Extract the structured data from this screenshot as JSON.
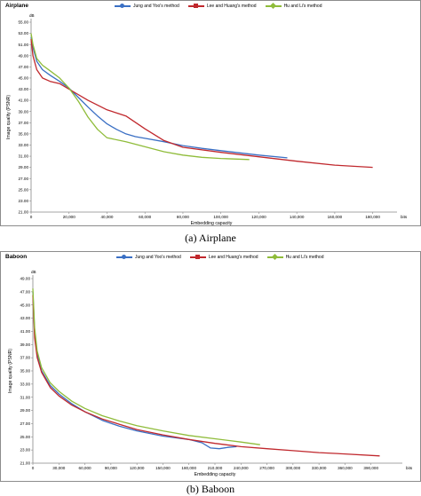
{
  "chart_data": [
    {
      "type": "line",
      "title": "Airplane",
      "caption": "(a)    Airplane",
      "xlabel": "Embedding capacity",
      "ylabel": "Image quality (PSNR)",
      "y_unit": "dB",
      "x_unit": "bits",
      "xlim": [
        0,
        190000
      ],
      "ylim": [
        21,
        55
      ],
      "x_ticks": [
        "0",
        "20,000",
        "40,000",
        "60,000",
        "80,000",
        "100,000",
        "120,000",
        "140,000",
        "160,000",
        "180,000"
      ],
      "y_ticks": [
        "21.00",
        "23.00",
        "25.00",
        "27.00",
        "29.00",
        "31.00",
        "33.00",
        "35.00",
        "37.00",
        "39.00",
        "41.00",
        "43.00",
        "45.00",
        "47.00",
        "49.00",
        "51.00",
        "53.00",
        "55.00"
      ],
      "grid": false,
      "legend_position": "top",
      "series": [
        {
          "name": "Jung and Yoo's method",
          "color": "#3a6fc4",
          "x": [
            0,
            1000,
            3000,
            6000,
            10000,
            15000,
            20000,
            25000,
            30000,
            35000,
            40000,
            45000,
            50000,
            55000,
            60000,
            70000,
            80000,
            90000,
            100000,
            110000,
            120000,
            135000
          ],
          "y": [
            52.3,
            50.5,
            48.0,
            46.5,
            45.5,
            44.4,
            43.2,
            41.5,
            39.8,
            38.2,
            36.8,
            35.8,
            35.0,
            34.5,
            34.2,
            33.6,
            32.9,
            32.4,
            32.0,
            31.6,
            31.2,
            30.7
          ]
        },
        {
          "name": "Lee and Huang's method",
          "color": "#c0282d",
          "x": [
            0,
            1000,
            3000,
            6000,
            10000,
            15000,
            20000,
            30000,
            40000,
            50000,
            60000,
            70000,
            80000,
            100000,
            120000,
            140000,
            160000,
            180000
          ],
          "y": [
            52.0,
            49.0,
            46.5,
            45.0,
            44.4,
            44.0,
            43.0,
            41.0,
            39.3,
            38.2,
            35.9,
            33.8,
            32.6,
            31.7,
            30.9,
            30.1,
            29.4,
            29.0
          ]
        },
        {
          "name": "Hu and Li's method",
          "color": "#8fbc3a",
          "x": [
            0,
            1000,
            3000,
            6000,
            10000,
            15000,
            20000,
            25000,
            30000,
            35000,
            40000,
            50000,
            60000,
            70000,
            80000,
            90000,
            100000,
            115000
          ],
          "y": [
            53.0,
            51.0,
            48.5,
            47.3,
            46.3,
            45.0,
            43.2,
            40.8,
            38.0,
            35.8,
            34.3,
            33.6,
            32.7,
            31.8,
            31.2,
            30.8,
            30.6,
            30.4
          ]
        }
      ]
    },
    {
      "type": "line",
      "title": "Baboon",
      "caption": "(b)   Baboon",
      "xlabel": "Embedding capacity",
      "ylabel": "Image quality (PSNR)",
      "y_unit": "dB",
      "x_unit": "bits",
      "xlim": [
        0,
        420000
      ],
      "ylim": [
        21,
        49
      ],
      "x_ticks": [
        "0",
        "30,000",
        "60,000",
        "90,000",
        "120,000",
        "150,000",
        "180,000",
        "210,000",
        "240,000",
        "270,000",
        "300,000",
        "330,000",
        "360,000",
        "390,000"
      ],
      "y_ticks": [
        "21.00",
        "23.00",
        "25.00",
        "27.00",
        "29.00",
        "31.00",
        "33.00",
        "35.00",
        "37.00",
        "39.00",
        "41.00",
        "43.00",
        "45.00",
        "47.00",
        "49.00"
      ],
      "grid": false,
      "legend_position": "top",
      "series": [
        {
          "name": "Jung and Yoo's method",
          "color": "#3a6fc4",
          "x": [
            0,
            2000,
            5000,
            10000,
            20000,
            30000,
            45000,
            60000,
            80000,
            100000,
            120000,
            150000,
            180000,
            195000,
            205000,
            215000,
            225000,
            235000
          ],
          "y": [
            47.0,
            41.0,
            37.5,
            35.0,
            32.8,
            31.5,
            30.0,
            28.8,
            27.5,
            26.6,
            25.9,
            25.1,
            24.6,
            24.1,
            23.3,
            23.2,
            23.4,
            23.5
          ]
        },
        {
          "name": "Lee and Huang's method",
          "color": "#c0282d",
          "x": [
            0,
            2000,
            5000,
            10000,
            20000,
            30000,
            45000,
            60000,
            80000,
            100000,
            120000,
            150000,
            180000,
            210000,
            240000,
            270000,
            300000,
            330000,
            360000,
            400000
          ],
          "y": [
            46.5,
            40.0,
            37.0,
            34.8,
            32.5,
            31.2,
            29.8,
            28.8,
            27.7,
            26.9,
            26.1,
            25.3,
            24.6,
            24.0,
            23.5,
            23.2,
            22.9,
            22.6,
            22.4,
            22.1
          ]
        },
        {
          "name": "Hu and Li's method",
          "color": "#8fbc3a",
          "x": [
            0,
            2000,
            5000,
            10000,
            20000,
            30000,
            45000,
            60000,
            80000,
            100000,
            120000,
            150000,
            180000,
            210000,
            240000,
            262000
          ],
          "y": [
            47.5,
            41.5,
            38.0,
            35.5,
            33.2,
            31.9,
            30.4,
            29.3,
            28.2,
            27.4,
            26.7,
            25.9,
            25.2,
            24.7,
            24.2,
            23.8
          ]
        }
      ]
    }
  ]
}
